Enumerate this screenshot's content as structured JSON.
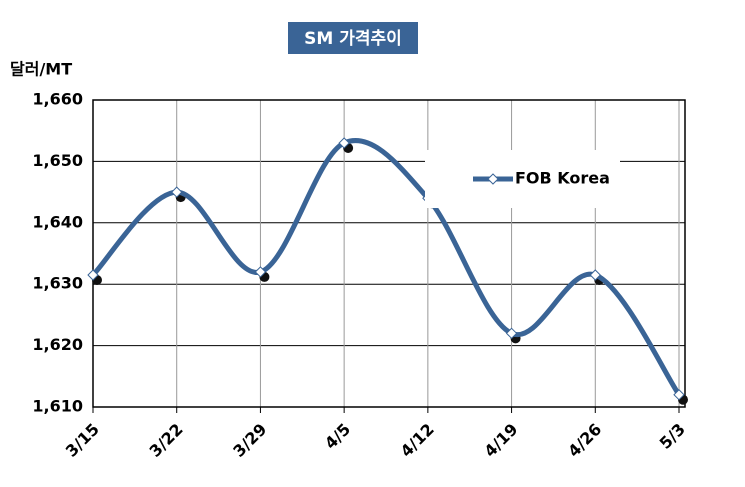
{
  "chart_data": {
    "type": "line",
    "title": "SM 가격추이",
    "y_label": "달러/MT",
    "categories": [
      "3/15",
      "3/22",
      "3/29",
      "4/5",
      "4/12",
      "4/19",
      "4/26",
      "5/3"
    ],
    "series": [
      {
        "name": "FOB Korea",
        "color": "#3a6496",
        "values": [
          1631.5,
          1645,
          1632,
          1653,
          1644,
          1622,
          1631.5,
          1612
        ]
      }
    ],
    "ylim": [
      1610,
      1660
    ],
    "yticks": [
      {
        "value": 1610,
        "label": "1,610"
      },
      {
        "value": 1620,
        "label": "1,620"
      },
      {
        "value": 1630,
        "label": "1,630"
      },
      {
        "value": 1640,
        "label": "1,640"
      },
      {
        "value": 1650,
        "label": "1,650"
      },
      {
        "value": 1660,
        "label": "1,660"
      }
    ],
    "grid": true,
    "smooth": true,
    "legend": "upper right",
    "title_background": "#3a6496"
  }
}
